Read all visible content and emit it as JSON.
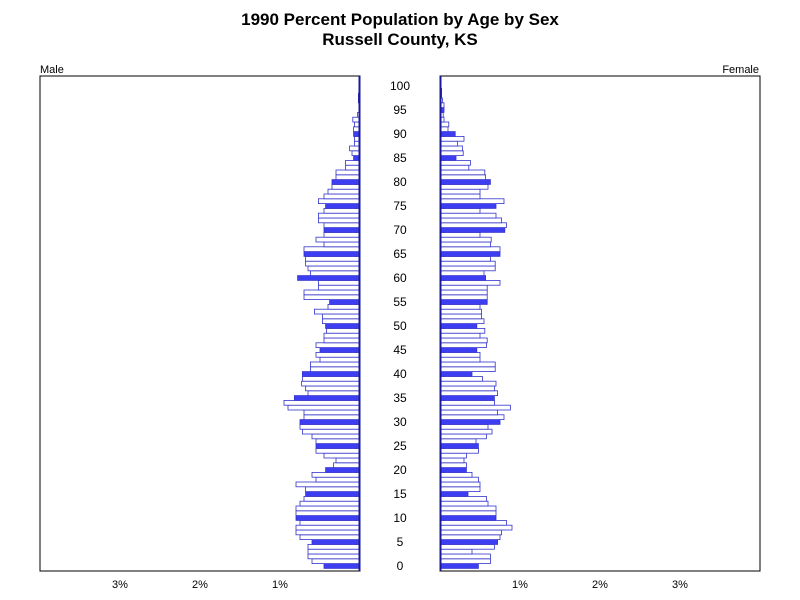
{
  "chart_data": {
    "type": "bar",
    "subtype": "population-pyramid",
    "title": "1990 Percent Population by Age by Sex",
    "subtitle": "Russell County, KS",
    "left_label": "Male",
    "right_label": "Female",
    "x_unit": "percent",
    "xlim": [
      0,
      4
    ],
    "x_ticks": [
      {
        "value": 3,
        "label": "3%"
      },
      {
        "value": 2,
        "label": "2%"
      },
      {
        "value": 1,
        "label": "1%"
      }
    ],
    "age_ticks": [
      0,
      5,
      10,
      15,
      20,
      25,
      30,
      35,
      40,
      45,
      50,
      55,
      60,
      65,
      70,
      75,
      80,
      85,
      90,
      95,
      100
    ],
    "highlight_ages": "every fifth age (0, 5, 10, ..., 100) drawn with filled bars",
    "colors": {
      "bar_edge": "#3333cc",
      "highlight_fill": "#3d3df2",
      "bar_fill": "#ffffff",
      "axis": "#000000"
    },
    "series": [
      {
        "name": "Male",
        "values": [
          0.45,
          0.6,
          0.65,
          0.65,
          0.65,
          0.6,
          0.75,
          0.8,
          0.8,
          0.75,
          0.8,
          0.8,
          0.8,
          0.75,
          0.7,
          0.68,
          0.68,
          0.8,
          0.55,
          0.6,
          0.43,
          0.33,
          0.3,
          0.45,
          0.55,
          0.55,
          0.55,
          0.6,
          0.72,
          0.75,
          0.75,
          0.7,
          0.7,
          0.9,
          0.95,
          0.82,
          0.65,
          0.68,
          0.73,
          0.72,
          0.72,
          0.62,
          0.62,
          0.5,
          0.55,
          0.5,
          0.55,
          0.45,
          0.45,
          0.42,
          0.43,
          0.47,
          0.47,
          0.57,
          0.4,
          0.38,
          0.7,
          0.7,
          0.52,
          0.52,
          0.78,
          0.62,
          0.65,
          0.68,
          0.68,
          0.7,
          0.7,
          0.45,
          0.55,
          0.45,
          0.45,
          0.45,
          0.52,
          0.52,
          0.45,
          0.43,
          0.52,
          0.45,
          0.4,
          0.35,
          0.35,
          0.3,
          0.3,
          0.18,
          0.18,
          0.08,
          0.1,
          0.13,
          0.07,
          0.07,
          0.08,
          0.08,
          0.07,
          0.09,
          0.03,
          0.01,
          0.01,
          0.02,
          0.02,
          0.0,
          0.0
        ]
      },
      {
        "name": "Female",
        "values": [
          0.48,
          0.63,
          0.63,
          0.4,
          0.68,
          0.72,
          0.75,
          0.77,
          0.9,
          0.83,
          0.7,
          0.7,
          0.7,
          0.6,
          0.58,
          0.35,
          0.5,
          0.5,
          0.48,
          0.4,
          0.33,
          0.33,
          0.3,
          0.33,
          0.48,
          0.48,
          0.45,
          0.58,
          0.65,
          0.6,
          0.75,
          0.8,
          0.72,
          0.88,
          0.68,
          0.68,
          0.72,
          0.68,
          0.7,
          0.53,
          0.4,
          0.69,
          0.69,
          0.5,
          0.5,
          0.46,
          0.58,
          0.59,
          0.5,
          0.56,
          0.46,
          0.55,
          0.52,
          0.52,
          0.5,
          0.59,
          0.59,
          0.59,
          0.59,
          0.75,
          0.57,
          0.55,
          0.69,
          0.69,
          0.63,
          0.75,
          0.75,
          0.63,
          0.64,
          0.5,
          0.81,
          0.83,
          0.77,
          0.7,
          0.5,
          0.7,
          0.8,
          0.5,
          0.5,
          0.6,
          0.63,
          0.57,
          0.56,
          0.36,
          0.38,
          0.2,
          0.29,
          0.28,
          0.22,
          0.3,
          0.19,
          0.1,
          0.11,
          0.05,
          0.04,
          0.05,
          0.05,
          0.03,
          0.02,
          0.02,
          0.01
        ]
      }
    ]
  }
}
